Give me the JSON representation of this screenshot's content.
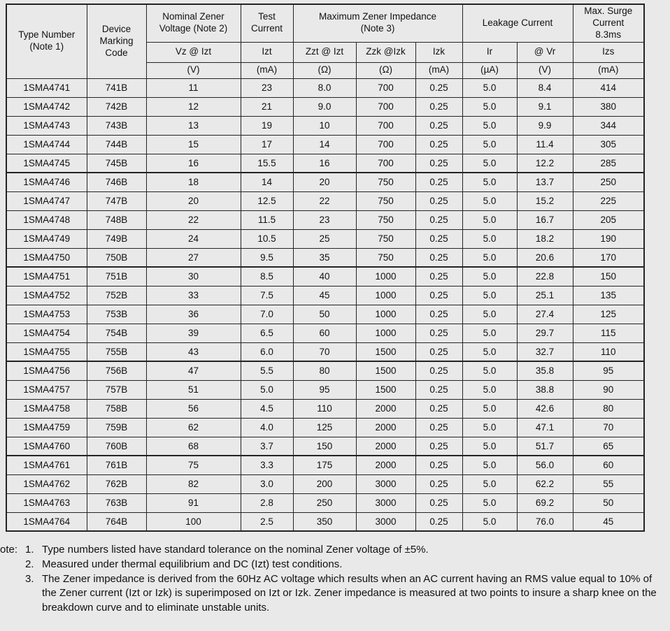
{
  "table": {
    "headers": {
      "type_number": "Type Number\n(Note 1)",
      "device_marking": "Device\nMarking\nCode",
      "nominal_zener": "Nominal Zener\nVoltage (Note 2)",
      "test_current": "Test\nCurrent",
      "max_impedance": "Maximum Zener Impedance\n(Note 3)",
      "leakage_current": "Leakage Current",
      "max_surge": "Max. Surge\nCurrent\n8.3ms"
    },
    "sub_headers": [
      "Vz @ Izt",
      "Izt",
      "Zzt @ Izt",
      "Zzk @Izk",
      "Izk",
      "Ir",
      "@ Vr",
      "Izs"
    ],
    "units": [
      "(V)",
      "(mA)",
      "(Ω)",
      "(Ω)",
      "(mA)",
      "(µA)",
      "(V)",
      "(mA)"
    ],
    "rows": [
      [
        "1SMA4741",
        "741B",
        "11",
        "23",
        "8.0",
        "700",
        "0.25",
        "5.0",
        "8.4",
        "414"
      ],
      [
        "1SMA4742",
        "742B",
        "12",
        "21",
        "9.0",
        "700",
        "0.25",
        "5.0",
        "9.1",
        "380"
      ],
      [
        "1SMA4743",
        "743B",
        "13",
        "19",
        "10",
        "700",
        "0.25",
        "5.0",
        "9.9",
        "344"
      ],
      [
        "1SMA4744",
        "744B",
        "15",
        "17",
        "14",
        "700",
        "0.25",
        "5.0",
        "11.4",
        "305"
      ],
      [
        "1SMA4745",
        "745B",
        "16",
        "15.5",
        "16",
        "700",
        "0.25",
        "5.0",
        "12.2",
        "285"
      ],
      [
        "1SMA4746",
        "746B",
        "18",
        "14",
        "20",
        "750",
        "0.25",
        "5.0",
        "13.7",
        "250"
      ],
      [
        "1SMA4747",
        "747B",
        "20",
        "12.5",
        "22",
        "750",
        "0.25",
        "5.0",
        "15.2",
        "225"
      ],
      [
        "1SMA4748",
        "748B",
        "22",
        "11.5",
        "23",
        "750",
        "0.25",
        "5.0",
        "16.7",
        "205"
      ],
      [
        "1SMA4749",
        "749B",
        "24",
        "10.5",
        "25",
        "750",
        "0.25",
        "5.0",
        "18.2",
        "190"
      ],
      [
        "1SMA4750",
        "750B",
        "27",
        "9.5",
        "35",
        "750",
        "0.25",
        "5.0",
        "20.6",
        "170"
      ],
      [
        "1SMA4751",
        "751B",
        "30",
        "8.5",
        "40",
        "1000",
        "0.25",
        "5.0",
        "22.8",
        "150"
      ],
      [
        "1SMA4752",
        "752B",
        "33",
        "7.5",
        "45",
        "1000",
        "0.25",
        "5.0",
        "25.1",
        "135"
      ],
      [
        "1SMA4753",
        "753B",
        "36",
        "7.0",
        "50",
        "1000",
        "0.25",
        "5.0",
        "27.4",
        "125"
      ],
      [
        "1SMA4754",
        "754B",
        "39",
        "6.5",
        "60",
        "1000",
        "0.25",
        "5.0",
        "29.7",
        "115"
      ],
      [
        "1SMA4755",
        "755B",
        "43",
        "6.0",
        "70",
        "1500",
        "0.25",
        "5.0",
        "32.7",
        "110"
      ],
      [
        "1SMA4756",
        "756B",
        "47",
        "5.5",
        "80",
        "1500",
        "0.25",
        "5.0",
        "35.8",
        "95"
      ],
      [
        "1SMA4757",
        "757B",
        "51",
        "5.0",
        "95",
        "1500",
        "0.25",
        "5.0",
        "38.8",
        "90"
      ],
      [
        "1SMA4758",
        "758B",
        "56",
        "4.5",
        "110",
        "2000",
        "0.25",
        "5.0",
        "42.6",
        "80"
      ],
      [
        "1SMA4759",
        "759B",
        "62",
        "4.0",
        "125",
        "2000",
        "0.25",
        "5.0",
        "47.1",
        "70"
      ],
      [
        "1SMA4760",
        "760B",
        "68",
        "3.7",
        "150",
        "2000",
        "0.25",
        "5.0",
        "51.7",
        "65"
      ],
      [
        "1SMA4761",
        "761B",
        "75",
        "3.3",
        "175",
        "2000",
        "0.25",
        "5.0",
        "56.0",
        "60"
      ],
      [
        "1SMA4762",
        "762B",
        "82",
        "3.0",
        "200",
        "3000",
        "0.25",
        "5.0",
        "62.2",
        "55"
      ],
      [
        "1SMA4763",
        "763B",
        "91",
        "2.8",
        "250",
        "3000",
        "0.25",
        "5.0",
        "69.2",
        "50"
      ],
      [
        "1SMA4764",
        "764B",
        "100",
        "2.5",
        "350",
        "3000",
        "0.25",
        "5.0",
        "76.0",
        "45"
      ]
    ]
  },
  "notes": {
    "label": "ote:",
    "items": [
      {
        "num": "1.",
        "text": "Type numbers listed have standard tolerance on the nominal Zener voltage of ±5%."
      },
      {
        "num": "2.",
        "text": "Measured under thermal equilibrium and DC (Izt) test conditions."
      },
      {
        "num": "3.",
        "text": "The Zener impedance is derived from the 60Hz AC voltage which results when an AC current having an RMS value equal to 10% of the Zener current (Izt or Izk) is superimposed on Izt or Izk. Zener impedance is measured at two points to insure a sharp knee on the breakdown curve and to eliminate unstable units."
      }
    ]
  }
}
